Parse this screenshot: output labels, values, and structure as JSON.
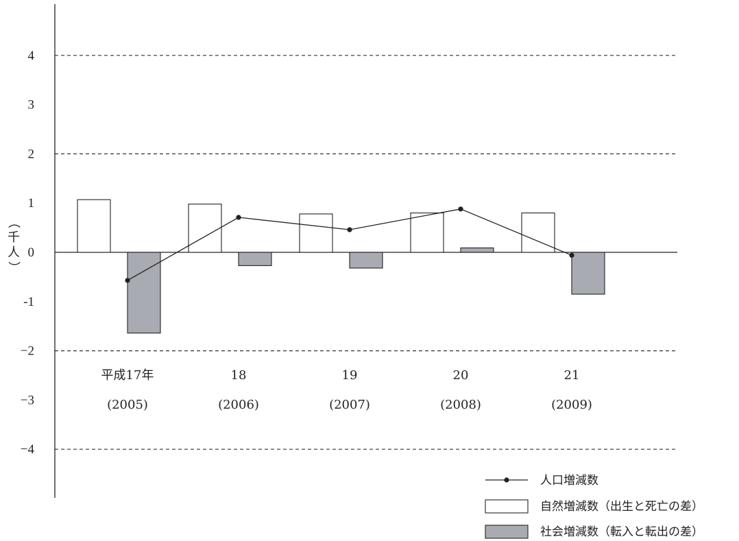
{
  "chart_data": {
    "type": "bar",
    "ylabel": "（千人）",
    "ylim": [
      -5,
      5
    ],
    "yticks": [
      {
        "value": 4,
        "label": "4"
      },
      {
        "value": 3,
        "label": "3"
      },
      {
        "value": 2,
        "label": "2"
      },
      {
        "value": 1,
        "label": "1"
      },
      {
        "value": 0,
        "label": "0"
      },
      {
        "value": -1,
        "label": "-1"
      },
      {
        "value": -2,
        "label": "−2"
      },
      {
        "value": -3,
        "label": "−3"
      },
      {
        "value": -4,
        "label": "−4"
      }
    ],
    "dashed_gridlines_at": [
      4,
      2,
      -2,
      -4
    ],
    "categories": [
      {
        "label": "平成17年",
        "sublabel": "(2005)"
      },
      {
        "label": "18",
        "sublabel": "(2006)"
      },
      {
        "label": "19",
        "sublabel": "(2007)"
      },
      {
        "label": "20",
        "sublabel": "(2008)"
      },
      {
        "label": "21",
        "sublabel": "(2009)"
      }
    ],
    "series": [
      {
        "name": "自然増減数（出生と死亡の差）",
        "type": "bar",
        "color": "#ffffff",
        "values": [
          1.07,
          0.98,
          0.78,
          0.8,
          0.8
        ]
      },
      {
        "name": "社会増減数（転入と転出の差）",
        "type": "bar",
        "color": "#a9abb3",
        "values": [
          -1.64,
          -0.27,
          -0.32,
          0.09,
          -0.85
        ]
      },
      {
        "name": "人口増減数",
        "type": "line",
        "color": "#222222",
        "values": [
          -0.57,
          0.71,
          0.46,
          0.88,
          -0.06
        ]
      }
    ],
    "legend_position": "bottom-right"
  }
}
